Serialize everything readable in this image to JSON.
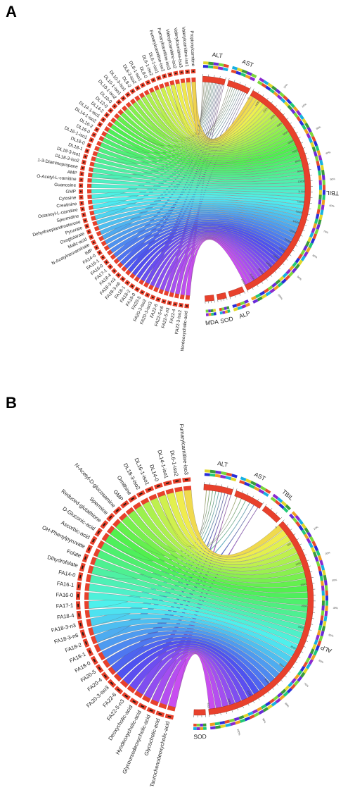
{
  "panels": [
    {
      "letter": "A",
      "metabolites": [
        "Nordeoxycholic-acid",
        "FA22-3-iso2",
        "FA22-4",
        "FA22-5-n3",
        "FA22-5-n6",
        "FA22-6",
        "FA20-3-iso3",
        "FA20-3-iso2",
        "FA20-5",
        "FA18-0",
        "FA18-2",
        "FA18-1",
        "FA18-3-n6",
        "FA18-3-n3",
        "FA18-4",
        "FA17-1",
        "FA16-0",
        "FA16-1",
        "FA14-0",
        "IMP",
        "N-Acetylneuraminate",
        "Malic-acid",
        "Oxoglutarate",
        "Pyruvate",
        "Dehydroepiandrosterone",
        "Spermidine",
        "Octanoyl-L-carnitine",
        "Creatinine",
        "Cytosine",
        "GMP",
        "Guanosine",
        "O-Acetyl-L-carnitine",
        "AMP",
        "1-3-Diaminopropane",
        "DL18-3-iso2",
        "DL18-3-iso1",
        "DL18-1",
        "DL16-0",
        "DL16-1-iso1",
        "DL16-0",
        "DL16-2",
        "DL14-1-iso2",
        "DL14-1-iso1",
        "DL14-2",
        "DL12-0",
        "DL10-0",
        "DL10-1-iso2",
        "DL10-1-iso1",
        "DL10-3-iso1",
        "DL8-2",
        "DL8-3-iso2",
        "DL8-1-iso1",
        "DL8-0",
        "DL6-1-iso2",
        "DL6-1-iso1",
        "Fumarylcarnitine-iso2",
        "Fumarylcarnitine-iso3",
        "Valerylcarnitine-iso2",
        "Valerylcarnitine-iso3",
        "Valerylcarnitine-iso1",
        "Propionylcarnitine"
      ],
      "indices": [
        {
          "name": "ALT",
          "weight": 3
        },
        {
          "name": "AST",
          "weight": 3
        },
        {
          "name": "TBIL",
          "weight": 32
        },
        {
          "name": "ALP",
          "weight": 2
        },
        {
          "name": "SOD",
          "weight": 1.2
        },
        {
          "name": "MDA",
          "weight": 1.2
        }
      ],
      "tick_values": [
        "0",
        "1000",
        "2000",
        "3000",
        "4000",
        "5000",
        "6000",
        "7000",
        "8000",
        "9000",
        "10000",
        "11000",
        "12000",
        "13000",
        "14000",
        "15000",
        "16000",
        "17000",
        "18000",
        "19000",
        "20000",
        "21000",
        "22000"
      ],
      "percent_ticks": [
        "10%",
        "20%",
        "30%",
        "40%",
        "50%",
        "60%",
        "70%",
        "80%",
        "90%",
        "100%"
      ],
      "colors": {
        "arc_red": "#e8412c",
        "dark": "#2b1a12"
      }
    },
    {
      "letter": "B",
      "metabolites": [
        "Taurochenodeoxycholic-acid",
        "Glycocholic-acid",
        "Glycoursodeoxycholic-acid",
        "Hyodeoxycholic-acid",
        "Deoxycholic-acid",
        "FA22-5-n3",
        "FA22-6",
        "FA20-3-iso3",
        "FA20-4",
        "FA20-5",
        "FA18-0",
        "FA18-1",
        "FA18-2",
        "FA18-3-n6",
        "FA18-3-n3",
        "FA18-4",
        "FA17-1",
        "FA16-0",
        "FA16-1",
        "FA14-0",
        "Dihydrofolate",
        "Folate",
        "OH-Phenylpyruvate",
        "Ascorbic-acid",
        "D-Gluconic-acid",
        "Reduced-glutathione",
        "Spermine",
        "N-Acetyl-D-glucosamine",
        "GMP",
        "Ornithine",
        "DL18-3-iso2",
        "DL16-1-iso1",
        "DL14-0",
        "DL14-1-iso1",
        "DL6-1-iso2",
        "Fumarylcarnitine-iso3"
      ],
      "indices": [
        {
          "name": "ALT",
          "weight": 3
        },
        {
          "name": "AST",
          "weight": 3
        },
        {
          "name": "TBIL",
          "weight": 2
        },
        {
          "name": "ALP",
          "weight": 26
        },
        {
          "name": "SOD",
          "weight": 1.2
        }
      ],
      "tick_values": [
        "0",
        "500",
        "1000",
        "1500",
        "2000",
        "2500",
        "3000",
        "3500",
        "4000",
        "4500",
        "5000",
        "5500"
      ],
      "percent_ticks": [
        "10%",
        "20%",
        "30%",
        "40%",
        "50%",
        "60%",
        "70%",
        "80%",
        "90%",
        "100%"
      ],
      "colors": {
        "arc_red": "#e8412c",
        "dark": "#2b1a12"
      }
    }
  ]
}
